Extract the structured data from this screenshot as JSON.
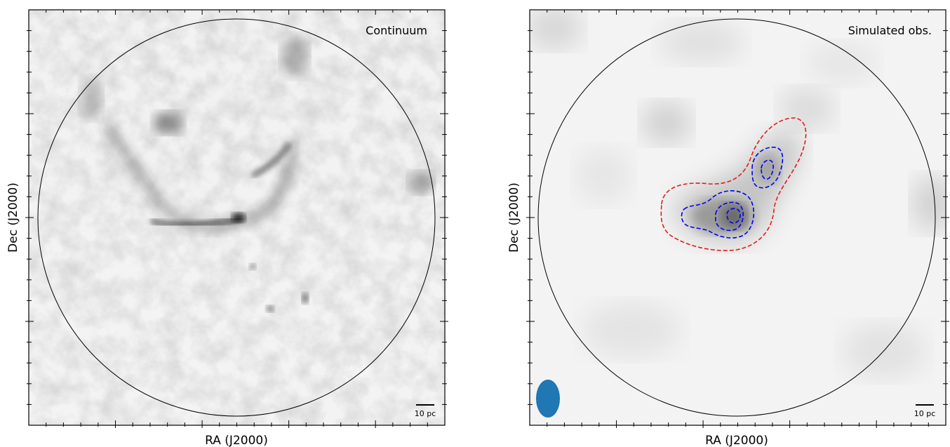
{
  "figure": {
    "panels": [
      {
        "label": "Continuum",
        "xlabel": "RA (J2000)",
        "ylabel": "Dec (J2000)",
        "scale_bar": "10 pc",
        "colormap": "gray-inverted"
      },
      {
        "label": "Simulated obs.",
        "xlabel": "RA (J2000)",
        "ylabel": "Dec (J2000)",
        "scale_bar": "10 pc",
        "colormap": "gray-inverted",
        "beam_color": "#1f77b4",
        "contour_colors": [
          "#e41a1c",
          "#0000ee"
        ]
      }
    ]
  }
}
